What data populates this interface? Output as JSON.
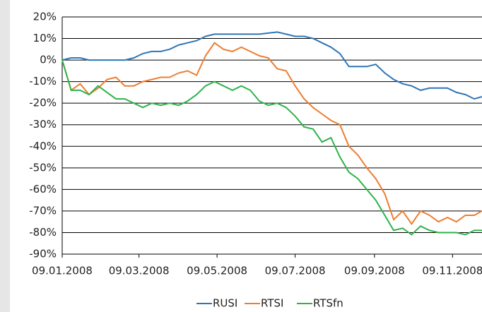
{
  "chart_data": {
    "type": "line",
    "x": [
      "09.01.2008",
      "16.01.2008",
      "23.01.2008",
      "30.01.2008",
      "06.02.2008",
      "13.02.2008",
      "20.02.2008",
      "27.02.2008",
      "05.03.2008",
      "12.03.2008",
      "19.03.2008",
      "26.03.2008",
      "02.04.2008",
      "09.04.2008",
      "16.04.2008",
      "23.04.2008",
      "30.04.2008",
      "07.05.2008",
      "14.05.2008",
      "21.05.2008",
      "28.05.2008",
      "04.06.2008",
      "11.06.2008",
      "18.06.2008",
      "25.06.2008",
      "02.07.2008",
      "09.07.2008",
      "16.07.2008",
      "23.07.2008",
      "30.07.2008",
      "06.08.2008",
      "13.08.2008",
      "20.08.2008",
      "27.08.2008",
      "03.09.2008",
      "10.09.2008",
      "17.09.2008",
      "24.09.2008",
      "01.10.2008",
      "08.10.2008",
      "15.10.2008",
      "22.10.2008",
      "29.10.2008",
      "05.11.2008",
      "12.11.2008",
      "19.11.2008",
      "26.11.2008",
      "02.12.2008"
    ],
    "series": [
      {
        "name": "RUSI",
        "color": "#2E75B6",
        "values": [
          0,
          1,
          1,
          0,
          0,
          0,
          0,
          0,
          1,
          3,
          4,
          4,
          5,
          7,
          8,
          9,
          11,
          12,
          12,
          12,
          12,
          12,
          12,
          12.5,
          13,
          12,
          11,
          11,
          10,
          8,
          6,
          3,
          -3,
          -3,
          -3,
          -2,
          -6,
          -9,
          -11,
          -12,
          -14,
          -13,
          -13,
          -13,
          -15,
          -16,
          -18,
          -17
        ]
      },
      {
        "name": "RTSI",
        "color": "#ED7D31",
        "values": [
          0,
          -14,
          -11,
          -16,
          -13,
          -9,
          -8,
          -12,
          -12,
          -10,
          -9,
          -8,
          -8,
          -6,
          -5,
          -7,
          2,
          8,
          5,
          4,
          6,
          4,
          2,
          1,
          -4,
          -5,
          -12,
          -18,
          -22,
          -25,
          -28,
          -30,
          -40,
          -44,
          -50,
          -55,
          -62,
          -74,
          -70,
          -76,
          -70,
          -72,
          -75,
          -73,
          -75,
          -72,
          -72,
          -70
        ]
      },
      {
        "name": "RTSfn",
        "color": "#2DB34A",
        "values": [
          0,
          -14,
          -14,
          -16,
          -12,
          -15,
          -18,
          -18,
          -20,
          -22,
          -20,
          -21,
          -20,
          -21,
          -19,
          -16,
          -12,
          -10,
          -12,
          -14,
          -12,
          -14,
          -19,
          -21,
          -20,
          -22,
          -26,
          -31,
          -32,
          -38,
          -36,
          -45,
          -52,
          -55,
          -60,
          -65,
          -72,
          -79,
          -78,
          -81,
          -77,
          -79,
          -80,
          -80,
          -80,
          -81,
          -79,
          -79
        ]
      }
    ],
    "xlim": [
      "09.01.2008",
      "02.12.2008"
    ],
    "xticks": [
      "09.01.2008",
      "09.03.2008",
      "09.05.2008",
      "09.07.2008",
      "09.09.2008",
      "09.11.2008"
    ],
    "ylim": [
      -90,
      20
    ],
    "yticks": [
      {
        "value": 20,
        "label": "20%"
      },
      {
        "value": 10,
        "label": "10%"
      },
      {
        "value": 0,
        "label": "0%"
      },
      {
        "value": -10,
        "label": "-10%"
      },
      {
        "value": -20,
        "label": "-20%"
      },
      {
        "value": -30,
        "label": "-30%"
      },
      {
        "value": -40,
        "label": "-40%"
      },
      {
        "value": -50,
        "label": "-50%"
      },
      {
        "value": -60,
        "label": "-60%"
      },
      {
        "value": -70,
        "label": "-70%"
      },
      {
        "value": -80,
        "label": "-80%"
      },
      {
        "value": -90,
        "label": "-90%"
      }
    ],
    "grid": true,
    "legend": "bottom"
  }
}
